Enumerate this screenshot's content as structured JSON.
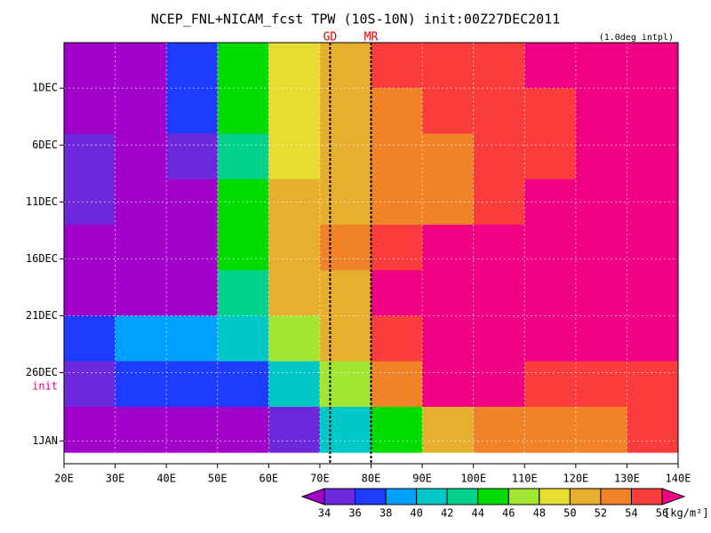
{
  "chart_data": {
    "type": "heatmap",
    "title": "NCEP_FNL+NICAM_fcst TPW (10S-10N) init:00Z27DEC2011",
    "subtitle": "(1.0deg intpl)",
    "x": [
      25,
      35,
      45,
      55,
      65,
      75,
      85,
      95,
      105,
      115,
      125,
      135
    ],
    "y": [
      -1,
      3,
      7,
      11,
      15,
      19,
      23,
      27,
      31
    ],
    "values": [
      [
        33,
        33,
        37,
        45,
        49,
        51,
        54,
        55,
        55,
        56,
        57,
        57
      ],
      [
        33,
        33,
        36,
        44,
        48,
        51,
        53,
        54,
        55,
        55,
        56,
        57
      ],
      [
        34,
        33,
        34,
        43,
        48,
        50,
        52,
        53,
        54,
        55,
        56,
        56
      ],
      [
        34,
        33,
        33,
        44,
        50,
        51,
        52,
        53,
        54,
        56,
        57,
        57
      ],
      [
        33,
        33,
        32,
        44,
        51,
        52,
        54,
        56,
        57,
        57,
        57,
        56
      ],
      [
        33,
        33,
        33,
        43,
        50,
        51,
        56,
        57,
        57,
        57,
        57,
        56
      ],
      [
        36,
        38,
        38,
        41,
        46,
        50,
        55,
        57,
        57,
        56,
        57,
        56
      ],
      [
        35,
        36,
        37,
        37,
        41,
        46,
        52,
        56,
        56,
        54,
        55,
        55
      ],
      [
        33,
        32,
        32,
        33,
        35,
        40,
        45,
        50,
        53,
        53,
        52,
        54
      ]
    ],
    "xlim": [
      20,
      140
    ],
    "xticks": [
      {
        "value": 20,
        "label": "20E"
      },
      {
        "value": 30,
        "label": "30E"
      },
      {
        "value": 40,
        "label": "40E"
      },
      {
        "value": 50,
        "label": "50E"
      },
      {
        "value": 60,
        "label": "60E"
      },
      {
        "value": 70,
        "label": "70E"
      },
      {
        "value": 80,
        "label": "80E"
      },
      {
        "value": 90,
        "label": "90E"
      },
      {
        "value": 100,
        "label": "100E"
      },
      {
        "value": 110,
        "label": "110E"
      },
      {
        "value": 120,
        "label": "120E"
      },
      {
        "value": 130,
        "label": "130E"
      },
      {
        "value": 140,
        "label": "140E"
      }
    ],
    "ylim": [
      34,
      -3
    ],
    "yticks": [
      {
        "value": 1,
        "label": "1DEC"
      },
      {
        "value": 6,
        "label": "6DEC"
      },
      {
        "value": 11,
        "label": "11DEC"
      },
      {
        "value": 16,
        "label": "16DEC"
      },
      {
        "value": 21,
        "label": "21DEC"
      },
      {
        "value": 26,
        "label": "26DEC"
      },
      {
        "value": 32,
        "label": "1JAN"
      }
    ],
    "markers": [
      {
        "label": "GD",
        "x": 72
      },
      {
        "label": "MR",
        "x": 80
      }
    ],
    "init": {
      "label": "init",
      "y": 27.2
    },
    "colorbar": {
      "ticks": [
        34,
        36,
        38,
        40,
        42,
        44,
        46,
        48,
        50,
        52,
        54,
        56
      ],
      "colors": [
        "#a000c8",
        "#6e28dc",
        "#1e3cff",
        "#00a0ff",
        "#00c8c8",
        "#00d28c",
        "#00dc00",
        "#a0e632",
        "#e6dc32",
        "#e6af2d",
        "#f08228",
        "#fa3c3c",
        "#f00082"
      ],
      "unit": "[kg/m²]"
    },
    "grid": true
  }
}
